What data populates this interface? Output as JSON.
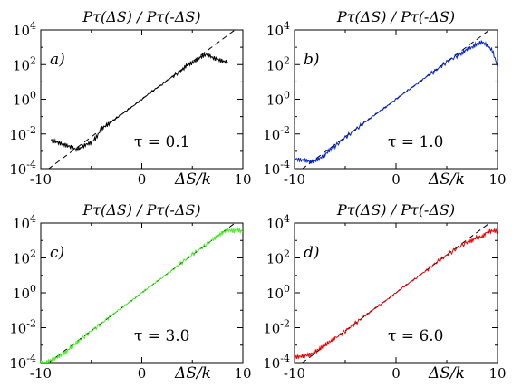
{
  "chart_data": [
    {
      "panel_label": "a)",
      "title": "Pτ(ΔS) / Pτ(-ΔS)",
      "tau_label": "τ = 0.1",
      "xlabel": "ΔS/k",
      "ylim_exp": [
        -4,
        4
      ],
      "y_scale": "log",
      "reference_line": "dashed, y = exp(ΔS/k)",
      "color": "#000000",
      "series": [
        {
          "x": [
            -9.0,
            -8.5,
            -8.0,
            -7.5,
            -7.0,
            -6.5,
            -6.0,
            -5.5,
            -5.0,
            -4.5,
            -4.0,
            -3.5,
            -3.0,
            -2.0,
            -1.0,
            0.0,
            1.0,
            2.0,
            3.0,
            4.0,
            4.5,
            5.0,
            5.5,
            6.0,
            6.5,
            7.0,
            7.5,
            8.0,
            8.5
          ],
          "log10y": [
            -2.35,
            -2.45,
            -2.55,
            -2.65,
            -2.75,
            -2.9,
            -2.8,
            -2.6,
            -2.5,
            -2.2,
            -1.7,
            -1.5,
            -1.3,
            -0.85,
            -0.45,
            0.0,
            0.45,
            0.85,
            1.3,
            1.7,
            2.0,
            2.1,
            2.3,
            2.5,
            2.6,
            2.4,
            2.3,
            2.2,
            2.15
          ]
        }
      ]
    },
    {
      "panel_label": "b)",
      "title": "Pτ(ΔS) / Pτ(-ΔS)",
      "tau_label": "τ = 1.0",
      "xlabel": "ΔS/k",
      "ylim_exp": [
        -4,
        4
      ],
      "y_scale": "log",
      "reference_line": "dashed, y = exp(ΔS/k)",
      "color": "#0022cc",
      "series": [
        {
          "x": [
            -10.0,
            -9.5,
            -9.0,
            -8.5,
            -8.0,
            -7.5,
            -7.0,
            -6.5,
            -6.0,
            -5.0,
            -4.0,
            -3.0,
            -2.0,
            -1.0,
            0.0,
            1.0,
            2.0,
            3.0,
            4.0,
            5.0,
            6.0,
            6.5,
            7.0,
            7.5,
            8.0,
            8.5,
            9.0,
            9.5,
            10.0
          ],
          "log10y": [
            -3.4,
            -3.5,
            -3.5,
            -3.6,
            -3.55,
            -3.4,
            -3.2,
            -2.9,
            -2.7,
            -2.2,
            -1.75,
            -1.3,
            -0.85,
            -0.45,
            0.0,
            0.45,
            0.85,
            1.3,
            1.7,
            2.15,
            2.5,
            2.65,
            2.9,
            3.0,
            3.2,
            3.3,
            3.1,
            2.8,
            1.9
          ]
        }
      ]
    },
    {
      "panel_label": "c)",
      "title": "Pτ(ΔS) / Pτ(-ΔS)",
      "tau_label": "τ = 3.0",
      "xlabel": "ΔS/k",
      "ylim_exp": [
        -4,
        4
      ],
      "y_scale": "log",
      "reference_line": "dashed, y = exp(ΔS/k)",
      "color": "#44ee22",
      "series": [
        {
          "x": [
            -10.0,
            -9.5,
            -9.0,
            -8.5,
            -8.0,
            -7.5,
            -7.0,
            -6.5,
            -6.0,
            -5.0,
            -4.0,
            -3.0,
            -2.0,
            -1.0,
            0.0,
            1.0,
            2.0,
            3.0,
            4.0,
            5.0,
            6.0,
            7.0,
            7.5,
            8.0,
            8.5,
            9.0,
            9.5,
            10.0
          ],
          "log10y": [
            -4.0,
            -4.0,
            -3.85,
            -3.75,
            -3.55,
            -3.4,
            -3.1,
            -2.9,
            -2.65,
            -2.2,
            -1.75,
            -1.3,
            -0.85,
            -0.45,
            0.0,
            0.45,
            0.85,
            1.3,
            1.75,
            2.2,
            2.6,
            3.05,
            3.25,
            3.45,
            3.6,
            3.55,
            3.6,
            3.5
          ]
        }
      ]
    },
    {
      "panel_label": "d)",
      "title": "Pτ(ΔS) / Pτ(-ΔS)",
      "tau_label": "τ = 6.0",
      "xlabel": "ΔS/k",
      "ylim_exp": [
        -4,
        4
      ],
      "y_scale": "log",
      "reference_line": "dashed, y = exp(ΔS/k)",
      "color": "#ee0000",
      "series": [
        {
          "x": [
            -10.0,
            -9.5,
            -9.0,
            -8.5,
            -8.0,
            -7.5,
            -7.0,
            -6.5,
            -6.0,
            -5.0,
            -4.0,
            -3.0,
            -2.0,
            -1.0,
            0.0,
            1.0,
            2.0,
            3.0,
            4.0,
            5.0,
            6.0,
            7.0,
            7.5,
            8.0,
            8.5,
            9.0,
            9.5,
            10.0
          ],
          "log10y": [
            -3.7,
            -3.65,
            -3.6,
            -3.55,
            -3.4,
            -3.2,
            -3.0,
            -2.8,
            -2.6,
            -2.2,
            -1.75,
            -1.3,
            -0.85,
            -0.45,
            0.0,
            0.45,
            0.85,
            1.3,
            1.75,
            2.15,
            2.55,
            2.9,
            3.0,
            3.2,
            3.2,
            3.5,
            3.55,
            3.55
          ]
        }
      ]
    }
  ],
  "axes": {
    "x_ticks": [
      "-10",
      "0",
      "10"
    ],
    "x_tick_values": [
      -10,
      0,
      10
    ],
    "y_tick_exponents": [
      -4,
      -2,
      0,
      2,
      4
    ],
    "y_tick_base": "10"
  }
}
